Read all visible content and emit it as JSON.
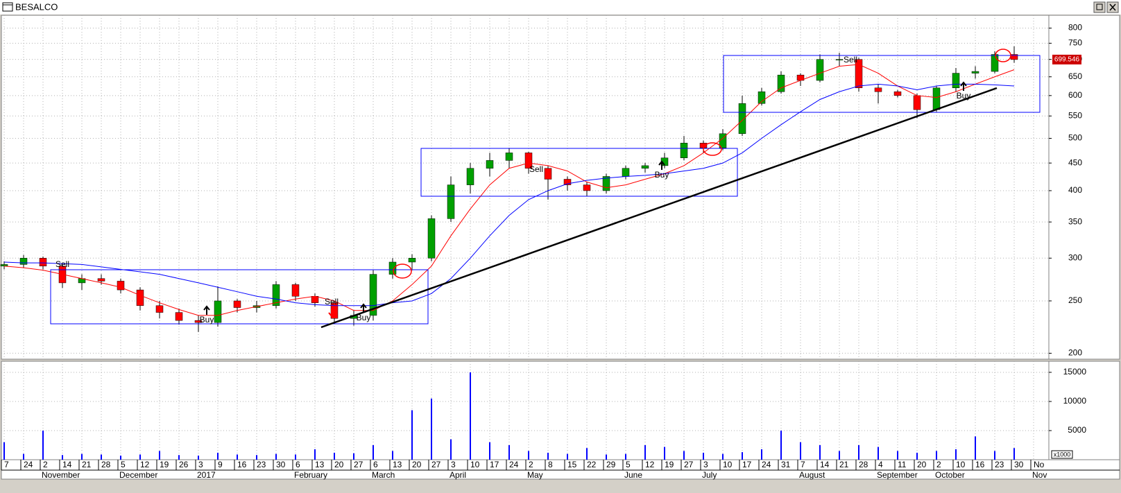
{
  "title": "BESALCO",
  "chart_data": {
    "type": "candlestick",
    "categories": [
      "7",
      "24",
      "2",
      "14",
      "21",
      "28",
      "5",
      "12",
      "19",
      "26",
      "3",
      "9",
      "16",
      "23",
      "30",
      "6",
      "13",
      "20",
      "27",
      "6",
      "13",
      "20",
      "27",
      "3",
      "10",
      "17",
      "24",
      "2",
      "8",
      "15",
      "22",
      "29",
      "5",
      "12",
      "19",
      "27",
      "3",
      "10",
      "17",
      "24",
      "31",
      "7",
      "14",
      "21",
      "28",
      "4",
      "11",
      "20",
      "2",
      "10",
      "16",
      "23",
      "30",
      "No"
    ],
    "month_labels": [
      null,
      null,
      "November",
      null,
      null,
      null,
      "December",
      null,
      null,
      null,
      "2017",
      null,
      null,
      null,
      null,
      "February",
      null,
      null,
      null,
      "March",
      null,
      null,
      null,
      "April",
      null,
      null,
      null,
      "May",
      null,
      null,
      null,
      null,
      "June",
      null,
      null,
      null,
      "July",
      null,
      null,
      null,
      null,
      "August",
      null,
      null,
      null,
      "September",
      null,
      null,
      "October",
      null,
      null,
      null,
      null,
      "Nov"
    ],
    "open": [
      290,
      292,
      300,
      290,
      270,
      275,
      272,
      262,
      245,
      238,
      230,
      228,
      250,
      243,
      245,
      268,
      255,
      248,
      232,
      235,
      280,
      295,
      300,
      355,
      410,
      440,
      455,
      470,
      440,
      420,
      410,
      400,
      425,
      440,
      445,
      460,
      490,
      480,
      510,
      580,
      610,
      655,
      640,
      700,
      700,
      620,
      610,
      600,
      565,
      620,
      660,
      665,
      715,
      null
    ],
    "high": [
      296,
      304,
      302,
      292,
      280,
      280,
      275,
      265,
      250,
      242,
      235,
      266,
      252,
      250,
      272,
      270,
      258,
      250,
      240,
      285,
      300,
      305,
      360,
      425,
      450,
      470,
      480,
      472,
      445,
      425,
      415,
      430,
      445,
      450,
      470,
      505,
      495,
      520,
      600,
      620,
      665,
      660,
      715,
      720,
      705,
      630,
      615,
      605,
      625,
      675,
      680,
      725,
      740,
      null
    ],
    "low": [
      286,
      288,
      286,
      264,
      262,
      268,
      258,
      240,
      232,
      226,
      219,
      224,
      238,
      238,
      242,
      250,
      244,
      228,
      225,
      230,
      275,
      285,
      296,
      350,
      395,
      425,
      440,
      430,
      385,
      400,
      390,
      395,
      420,
      432,
      440,
      455,
      470,
      475,
      505,
      575,
      605,
      625,
      635,
      680,
      610,
      580,
      595,
      545,
      560,
      610,
      645,
      660,
      690,
      null
    ],
    "close": [
      292,
      300,
      290,
      270,
      275,
      272,
      262,
      245,
      238,
      230,
      228,
      250,
      243,
      245,
      268,
      255,
      248,
      232,
      235,
      280,
      295,
      300,
      355,
      410,
      440,
      455,
      470,
      440,
      420,
      410,
      400,
      425,
      440,
      445,
      460,
      490,
      480,
      510,
      580,
      610,
      655,
      640,
      700,
      700,
      620,
      610,
      600,
      565,
      620,
      660,
      665,
      715,
      699.546,
      null
    ],
    "up_color": "#00a000",
    "down_color": "#ff0000",
    "series": [
      {
        "name": null,
        "color": "#ff0000",
        "values": [
          290,
          288,
          285,
          280,
          275,
          270,
          265,
          256,
          248,
          241,
          235,
          235,
          240,
          244,
          248,
          252,
          255,
          250,
          240,
          240,
          250,
          268,
          290,
          330,
          370,
          410,
          440,
          450,
          445,
          435,
          415,
          405,
          410,
          420,
          430,
          445,
          470,
          500,
          540,
          585,
          620,
          640,
          660,
          680,
          685,
          660,
          625,
          600,
          595,
          610,
          630,
          650,
          670,
          null
        ]
      },
      {
        "name": null,
        "color": "#0000ff",
        "values": [
          295,
          294,
          294,
          293,
          292,
          289,
          286,
          283,
          280,
          275,
          270,
          265,
          260,
          255,
          252,
          248,
          246,
          245,
          245,
          245,
          248,
          250,
          258,
          275,
          300,
          330,
          360,
          385,
          400,
          412,
          418,
          422,
          425,
          427,
          430,
          435,
          440,
          450,
          470,
          500,
          530,
          560,
          590,
          610,
          625,
          630,
          625,
          615,
          625,
          630,
          630,
          628,
          625,
          null
        ]
      }
    ],
    "last_price": 699.546,
    "ylim": [
      195,
      845
    ],
    "log_y": true,
    "yticks": [
      200,
      250,
      300,
      350,
      400,
      450,
      500,
      550,
      600,
      650,
      700,
      750,
      800
    ],
    "grid": true,
    "volume": {
      "values": [
        3000,
        1000,
        5000,
        800,
        1000,
        900,
        700,
        900,
        1500,
        800,
        700,
        1200,
        900,
        800,
        1000,
        900,
        1800,
        1200,
        1100,
        2500,
        1500,
        8500,
        10500,
        3500,
        15000,
        3000,
        2500,
        1500,
        1200,
        1000,
        2000,
        900,
        1000,
        2500,
        2200,
        1500,
        1200,
        1000,
        1300,
        1800,
        5000,
        3000,
        2500,
        1500,
        2500,
        2200,
        1500,
        1200,
        1500,
        1800,
        4000,
        1500,
        2000,
        null
      ],
      "color": "#0000ff",
      "ylim": [
        0,
        16900
      ],
      "yticks": [
        5000,
        10000,
        15000
      ],
      "unit_label": "x1000"
    },
    "annotations": [
      "Sell",
      "Buy",
      "Sell",
      "Buy",
      "Sell",
      "Buy",
      "Sell",
      "Buy"
    ]
  }
}
